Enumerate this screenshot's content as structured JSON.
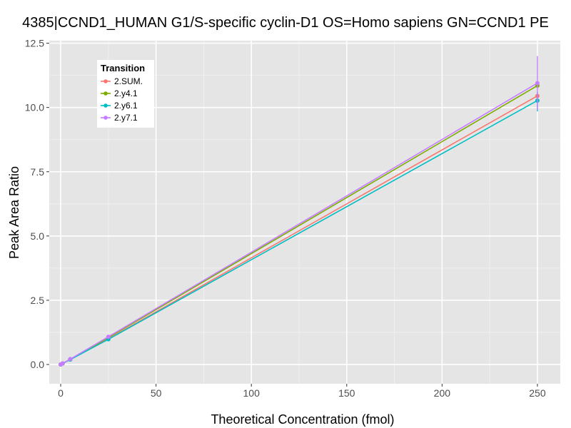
{
  "chart_data": {
    "type": "line",
    "title": "4385|CCND1_HUMAN G1/S-specific cyclin-D1 OS=Homo sapiens GN=CCND1 PE",
    "xlabel": "Theoretical Concentration (fmol)",
    "ylabel": "Peak Area Ratio",
    "xlim": [
      -6,
      262
    ],
    "ylim": [
      -0.75,
      12.6
    ],
    "x_ticks": [
      "0",
      "50",
      "100",
      "150",
      "200",
      "250"
    ],
    "y_ticks": [
      "0.0",
      "2.5",
      "5.0",
      "7.5",
      "10.0",
      "12.5"
    ],
    "x_tick_values": [
      0,
      50,
      100,
      150,
      200,
      250
    ],
    "y_tick_values": [
      0,
      2.5,
      5,
      7.5,
      10,
      12.5
    ],
    "grid": true,
    "legend": {
      "title": "Transition",
      "position": "top-left"
    },
    "series": [
      {
        "name": "2.SUM.",
        "color": "#F8766D",
        "points": [
          {
            "x": 0,
            "y": 0.0
          },
          {
            "x": 1,
            "y": 0.04
          },
          {
            "x": 5,
            "y": 0.2
          },
          {
            "x": 25,
            "y": 1.0
          },
          {
            "x": 250,
            "y": 10.45
          }
        ],
        "error_bars": []
      },
      {
        "name": "2.y4.1",
        "color": "#7CAE00",
        "points": [
          {
            "x": 0,
            "y": 0.0
          },
          {
            "x": 1,
            "y": 0.04
          },
          {
            "x": 5,
            "y": 0.2
          },
          {
            "x": 25,
            "y": 1.05
          },
          {
            "x": 250,
            "y": 10.85
          }
        ],
        "error_bars": [
          {
            "x": 250,
            "low": 10.8,
            "high": 10.95
          }
        ]
      },
      {
        "name": "2.y6.1",
        "color": "#00BFC4",
        "points": [
          {
            "x": 0,
            "y": 0.0
          },
          {
            "x": 1,
            "y": 0.04
          },
          {
            "x": 5,
            "y": 0.19
          },
          {
            "x": 25,
            "y": 0.98
          },
          {
            "x": 250,
            "y": 10.27
          }
        ],
        "error_bars": [
          {
            "x": 250,
            "low": 9.85,
            "high": 10.6
          }
        ]
      },
      {
        "name": "2.y7.1",
        "color": "#C77CFF",
        "points": [
          {
            "x": 0,
            "y": 0.0
          },
          {
            "x": 1,
            "y": 0.04
          },
          {
            "x": 5,
            "y": 0.21
          },
          {
            "x": 25,
            "y": 1.08
          },
          {
            "x": 250,
            "y": 10.95
          }
        ],
        "error_bars": [
          {
            "x": 250,
            "low": 9.9,
            "high": 12.0
          }
        ]
      }
    ]
  }
}
